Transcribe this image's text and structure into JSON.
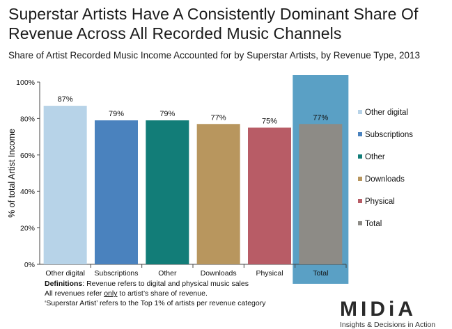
{
  "title": "Superstar Artists Have A Consistently Dominant Share Of Revenue Across All Recorded Music Channels",
  "subtitle": "Share of Artist Recorded Music Income Accounted for by Superstar Artists, by Revenue Type, 2013",
  "definitions": {
    "lead": "Definitions",
    "line1_rest": ": Revenue refers to digital and physical music sales",
    "line2_pre": "All revenues refer ",
    "line2_emph": "only",
    "line2_post": " to artist’s share of revenue.",
    "line3": "‘Superstar Artist’ refers to the Top 1% of artists per revenue category"
  },
  "logo": {
    "word": "MIDiA",
    "tagline": "Insights & Decisions in Action"
  },
  "chart_data": {
    "type": "bar",
    "categories": [
      "Other digital",
      "Subscriptions",
      "Other",
      "Downloads",
      "Physical",
      "Total"
    ],
    "values": [
      87,
      79,
      79,
      77,
      75,
      77
    ],
    "value_labels": [
      "87%",
      "79%",
      "79%",
      "77%",
      "75%",
      "77%"
    ],
    "colors": [
      "#b7d3e8",
      "#4a82be",
      "#127d78",
      "#b8965e",
      "#b85c66",
      "#8d8b86"
    ],
    "highlight_category": "Total",
    "highlight_color": "#5aa0c5",
    "ylabel": "% of total Artist Income",
    "xlabel": "",
    "ylim": [
      0,
      100
    ],
    "yticks": [
      0,
      20,
      40,
      60,
      80,
      100
    ],
    "ytick_labels": [
      "0%",
      "20%",
      "40%",
      "60%",
      "80%",
      "100%"
    ],
    "legend": {
      "placement": "right",
      "entries": [
        "Other digital",
        "Subscriptions",
        "Other",
        "Downloads",
        "Physical",
        "Total"
      ]
    },
    "grid": false
  }
}
